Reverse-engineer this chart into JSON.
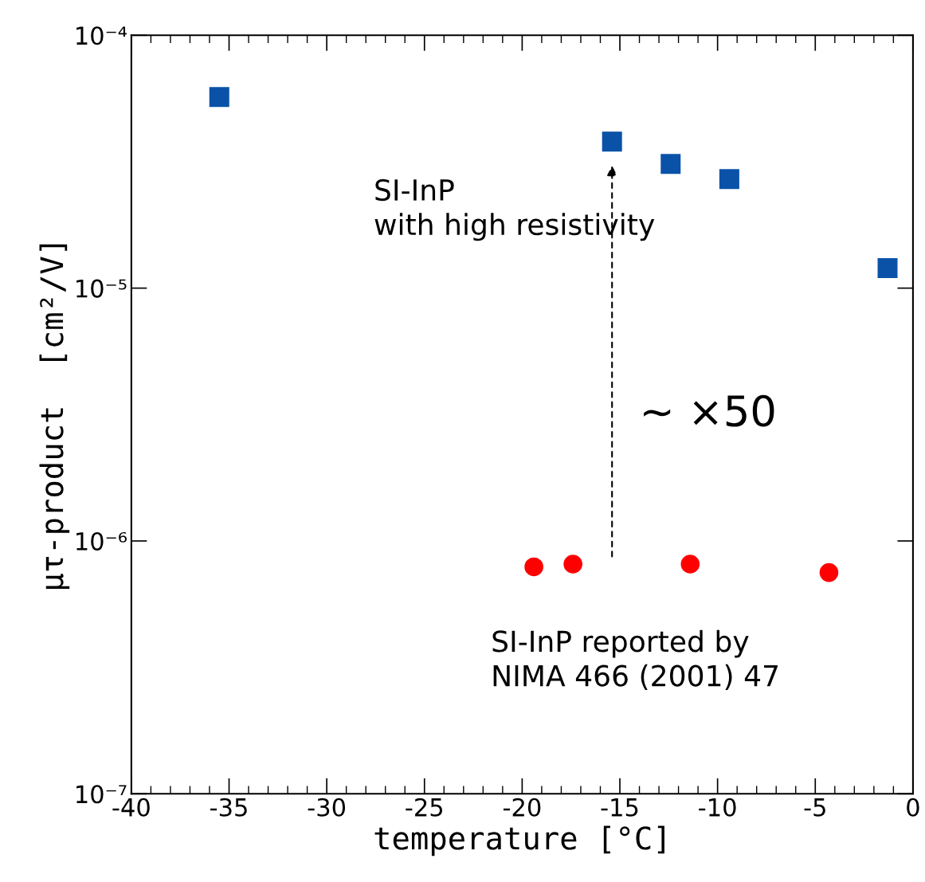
{
  "chart_data": {
    "type": "scatter",
    "xlabel": "temperature [°C]",
    "ylabel": "μτ-product  [cm²/V]",
    "log": "y",
    "xlim": [
      -40,
      0
    ],
    "xticks": [
      -40,
      -35,
      -30,
      -25,
      -20,
      -15,
      -10,
      -5,
      0
    ],
    "ylim": [
      1e-07,
      0.0001
    ],
    "yticks": [
      {
        "value": 1e-07,
        "label": "10⁻⁷"
      },
      {
        "value": 1e-06,
        "label": "10⁻⁶"
      },
      {
        "value": 1e-05,
        "label": "10⁻⁵"
      },
      {
        "value": 0.0001,
        "label": "10⁻⁴"
      }
    ],
    "grid": false,
    "legend": false,
    "series": [
      {
        "color": "#0a52a8",
        "marker": "square",
        "x": [
          -35.5,
          -15.4,
          -12.4,
          -9.4,
          -1.3
        ],
        "values": [
          5.7e-05,
          3.8e-05,
          3.1e-05,
          2.7e-05,
          1.2e-05
        ]
      },
      {
        "color": "#ff0000",
        "marker": "circle",
        "x": [
          -19.4,
          -17.4,
          -11.4,
          -4.3
        ],
        "values": [
          7.9e-07,
          8.1e-07,
          8.1e-07,
          7.5e-07
        ]
      }
    ],
    "annotations": [
      "SI-InP\nwith high resistivity",
      "~ ×50",
      "SI-InP reported by\nNIMA 466 (2001) 47"
    ]
  }
}
